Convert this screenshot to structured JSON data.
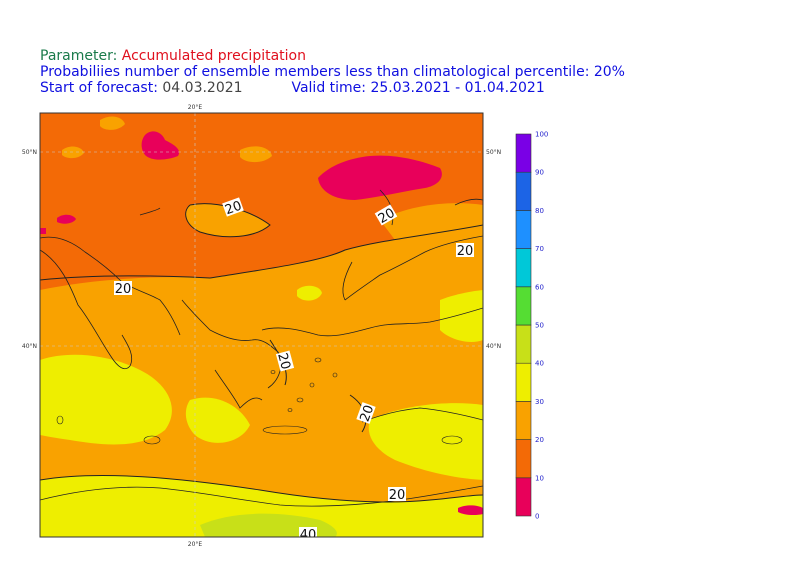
{
  "header": {
    "parameter_label": "Parameter:",
    "parameter_value": "Accumulated precipitation",
    "subtitle": "Probabiliies number of ensemble members less than climatological percentile: 20%",
    "start_label": "Start of forecast:",
    "start_value": "04.03.2021",
    "valid_label": "Valid time:",
    "valid_value": "25.03.2021 - 01.04.2021"
  },
  "axes": {
    "lat_labels": [
      "50°N",
      "40°N"
    ],
    "lon_labels": [
      "20°E",
      "20°E"
    ]
  },
  "contour_labels": [
    "20",
    "20",
    "20",
    "20",
    "20",
    "20",
    "20",
    "40"
  ],
  "colorbar": {
    "ticks": [
      "0",
      "10",
      "20",
      "30",
      "40",
      "50",
      "60",
      "70",
      "80",
      "90",
      "100"
    ],
    "colors": [
      "#e8005a",
      "#f36a06",
      "#f9a200",
      "#eeee00",
      "#c8e018",
      "#55dd33",
      "#00c8d8",
      "#1e90ff",
      "#1c64e6",
      "#7a00e6"
    ]
  },
  "map_colors": {
    "level_0_10": "#e8005a",
    "level_10_20": "#f36a06",
    "level_20_30": "#f9a200",
    "level_30_40": "#eeee00",
    "level_40_50": "#c8e018"
  }
}
